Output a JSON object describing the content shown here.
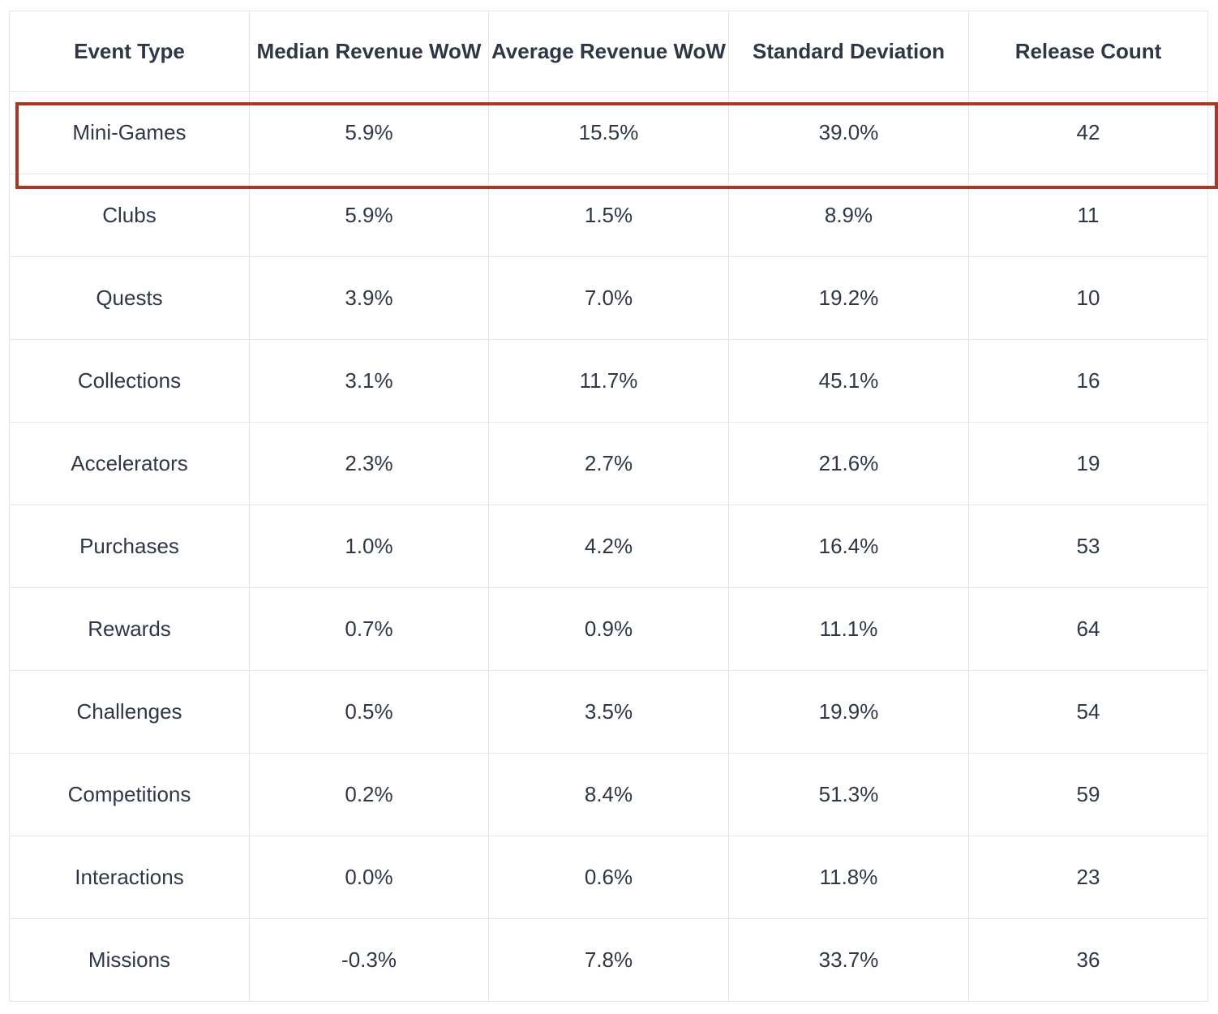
{
  "chart_data": {
    "type": "table",
    "columns": [
      "Event Type",
      "Median Revenue WoW",
      "Average Revenue WoW",
      "Standard Deviation",
      "Release Count"
    ],
    "rows": [
      [
        "Mini-Games",
        "5.9%",
        "15.5%",
        "39.0%",
        "42"
      ],
      [
        "Clubs",
        "5.9%",
        "1.5%",
        "8.9%",
        "11"
      ],
      [
        "Quests",
        "3.9%",
        "7.0%",
        "19.2%",
        "10"
      ],
      [
        "Collections",
        "3.1%",
        "11.7%",
        "45.1%",
        "16"
      ],
      [
        "Accelerators",
        "2.3%",
        "2.7%",
        "21.6%",
        "19"
      ],
      [
        "Purchases",
        "1.0%",
        "4.2%",
        "16.4%",
        "53"
      ],
      [
        "Rewards",
        "0.7%",
        "0.9%",
        "11.1%",
        "64"
      ],
      [
        "Challenges",
        "0.5%",
        "3.5%",
        "19.9%",
        "54"
      ],
      [
        "Competitions",
        "0.2%",
        "8.4%",
        "51.3%",
        "59"
      ],
      [
        "Interactions",
        "0.0%",
        "0.6%",
        "11.8%",
        "23"
      ],
      [
        "Missions",
        "-0.3%",
        "7.8%",
        "33.7%",
        "36"
      ]
    ],
    "highlighted_row": "Mini-Games",
    "highlight_color": "#a33a22",
    "text_color": "#2f3747",
    "border_color": "#e4e6ea"
  }
}
